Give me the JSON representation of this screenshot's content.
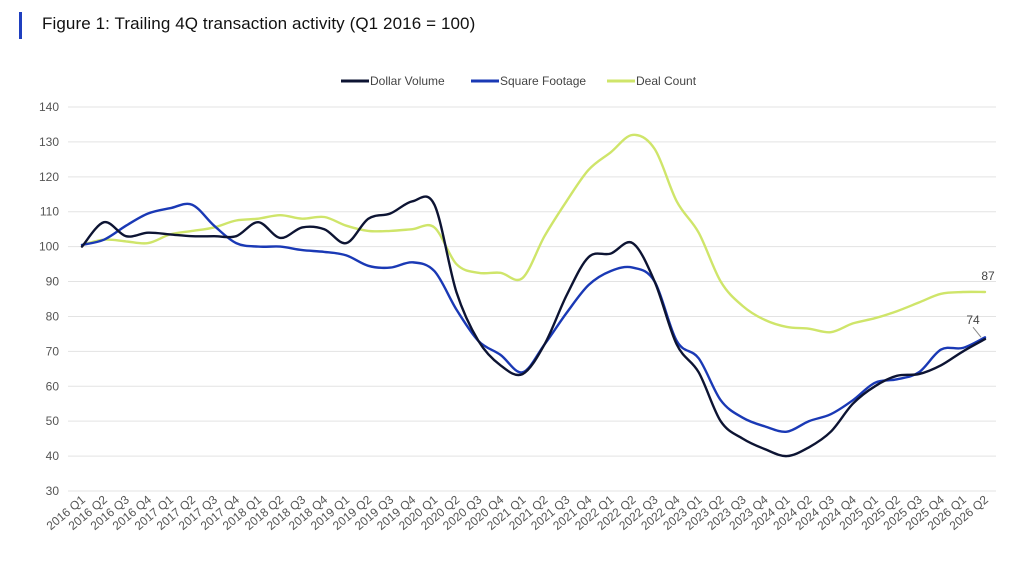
{
  "title": "Figure 1: Trailing 4Q transaction activity (Q1 2016 = 100)",
  "chart_data": {
    "type": "line",
    "title": "Figure 1: Trailing 4Q transaction activity (Q1 2016 = 100)",
    "xlabel": "",
    "ylabel": "",
    "ylim": [
      30,
      140
    ],
    "yticks": [
      30,
      40,
      50,
      60,
      70,
      80,
      90,
      100,
      110,
      120,
      130,
      140
    ],
    "grid": true,
    "legend": "top-center",
    "categories": [
      "2016 Q1",
      "2016 Q2",
      "2016 Q3",
      "2016 Q4",
      "2017 Q1",
      "2017 Q2",
      "2017 Q3",
      "2017 Q4",
      "2018 Q1",
      "2018 Q2",
      "2018 Q3",
      "2018 Q4",
      "2019 Q1",
      "2019 Q2",
      "2019 Q3",
      "2019 Q4",
      "2020 Q1",
      "2020 Q2",
      "2020 Q3",
      "2020 Q4",
      "2021 Q1",
      "2021 Q2",
      "2021 Q3",
      "2021 Q4",
      "2022 Q1",
      "2022 Q2",
      "2022 Q3",
      "2022 Q4",
      "2023 Q1",
      "2023 Q2",
      "2023 Q3",
      "2023 Q4",
      "2024 Q1",
      "2024 Q2",
      "2024 Q3",
      "2024 Q4",
      "2025 Q1",
      "2025 Q2",
      "2025 Q3",
      "2025 Q4",
      "2026 Q1",
      "2026 Q2"
    ],
    "series": [
      {
        "name": "Dollar Volume",
        "color": "#0d1433",
        "values": [
          100,
          107,
          103,
          104,
          103.5,
          103,
          103,
          103,
          107,
          102.5,
          105.5,
          105,
          101,
          108,
          109.5,
          113,
          112,
          87,
          73,
          66,
          63.5,
          72,
          86,
          97,
          98,
          101,
          90,
          72,
          64,
          50,
          45,
          42,
          40,
          42.5,
          47,
          55,
          60,
          63,
          63.5,
          66,
          70,
          73.5
        ]
      },
      {
        "name": "Square Footage",
        "color": "#1a39b5",
        "values": [
          100.5,
          102,
          106,
          109.5,
          111,
          112,
          106,
          101,
          100,
          100,
          99,
          98.5,
          97.5,
          94.5,
          94,
          95.5,
          93,
          82,
          73,
          69,
          64,
          72,
          81,
          89,
          93,
          94,
          90,
          73,
          68,
          56,
          51,
          48.5,
          47,
          50,
          52,
          56,
          61,
          62,
          64,
          70.5,
          71,
          74
        ]
      },
      {
        "name": "Deal Count",
        "color": "#cfe56a",
        "values": [
          100.5,
          102,
          101.5,
          101,
          103.5,
          104.5,
          105.5,
          107.5,
          108,
          109,
          108,
          108.5,
          106,
          104.5,
          104.5,
          105,
          105.5,
          95,
          92.5,
          92.5,
          91,
          103,
          113,
          122,
          127,
          132,
          128,
          113,
          104,
          90,
          83,
          79,
          77,
          76.5,
          75.5,
          78,
          79.5,
          81.5,
          84,
          86.5,
          87,
          87
        ]
      }
    ],
    "annotations": [
      {
        "series": "Deal Count",
        "category": "2026 Q2",
        "text": "87"
      },
      {
        "series": "Dollar Volume",
        "category": "2026 Q2",
        "text": "74"
      }
    ]
  }
}
